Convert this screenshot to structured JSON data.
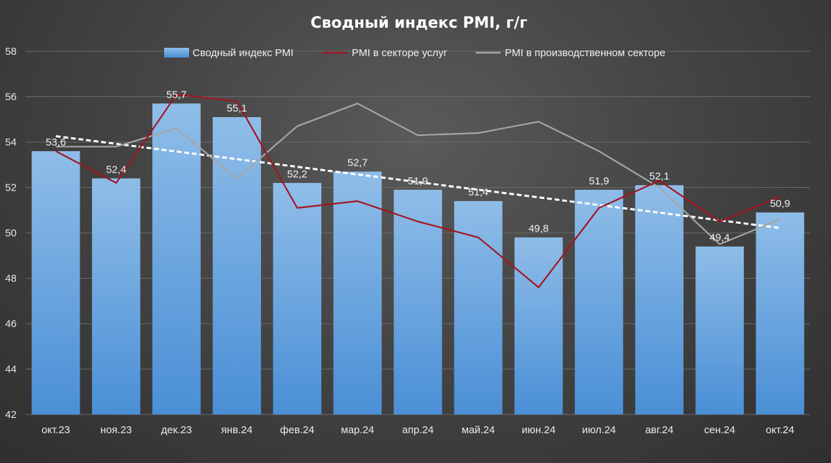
{
  "chart_data": {
    "type": "bar",
    "title": "Сводный индекс PMI, г/г",
    "categories": [
      "окт.23",
      "ноя.23",
      "дек.23",
      "янв.24",
      "фев.24",
      "мар.24",
      "апр.24",
      "май.24",
      "июн.24",
      "июл.24",
      "авг.24",
      "сен.24",
      "окт.24"
    ],
    "ylim": [
      42,
      58
    ],
    "yticks": [
      42,
      44,
      46,
      48,
      50,
      52,
      54,
      56,
      58
    ],
    "ytick_labels": [
      "42",
      "44",
      "46",
      "48",
      "50",
      "52",
      "54",
      "56",
      "58"
    ],
    "grid": true,
    "legend_position": "top",
    "series": [
      {
        "name": "Сводный индекс PMI",
        "type": "bar",
        "color": "#5b9bd5",
        "values": [
          53.6,
          52.4,
          55.7,
          55.1,
          52.2,
          52.7,
          51.9,
          51.4,
          49.8,
          51.9,
          52.1,
          49.4,
          50.9
        ],
        "labels": [
          "53,6",
          "52,4",
          "55,7",
          "55,1",
          "52,2",
          "52,7",
          "51,9",
          "51,4",
          "49,8",
          "51,9",
          "52,1",
          "49,4",
          "50,9"
        ]
      },
      {
        "name": "PMI в секторе услуг",
        "type": "line",
        "color": "#a3151f",
        "values": [
          53.6,
          52.2,
          56.1,
          55.8,
          51.1,
          51.4,
          50.5,
          49.8,
          47.6,
          51.1,
          52.3,
          50.5,
          51.6
        ]
      },
      {
        "name": "PMI в производственном секторе",
        "type": "line",
        "color": "#a6a6a6",
        "values": [
          53.8,
          53.8,
          54.6,
          52.4,
          54.7,
          55.7,
          54.3,
          54.4,
          54.9,
          53.6,
          52.0,
          49.5,
          50.6
        ]
      }
    ],
    "trendline": {
      "type": "linear",
      "of_series": "Сводный индекс PMI",
      "color": "#ffffff",
      "style": "dashed"
    }
  }
}
